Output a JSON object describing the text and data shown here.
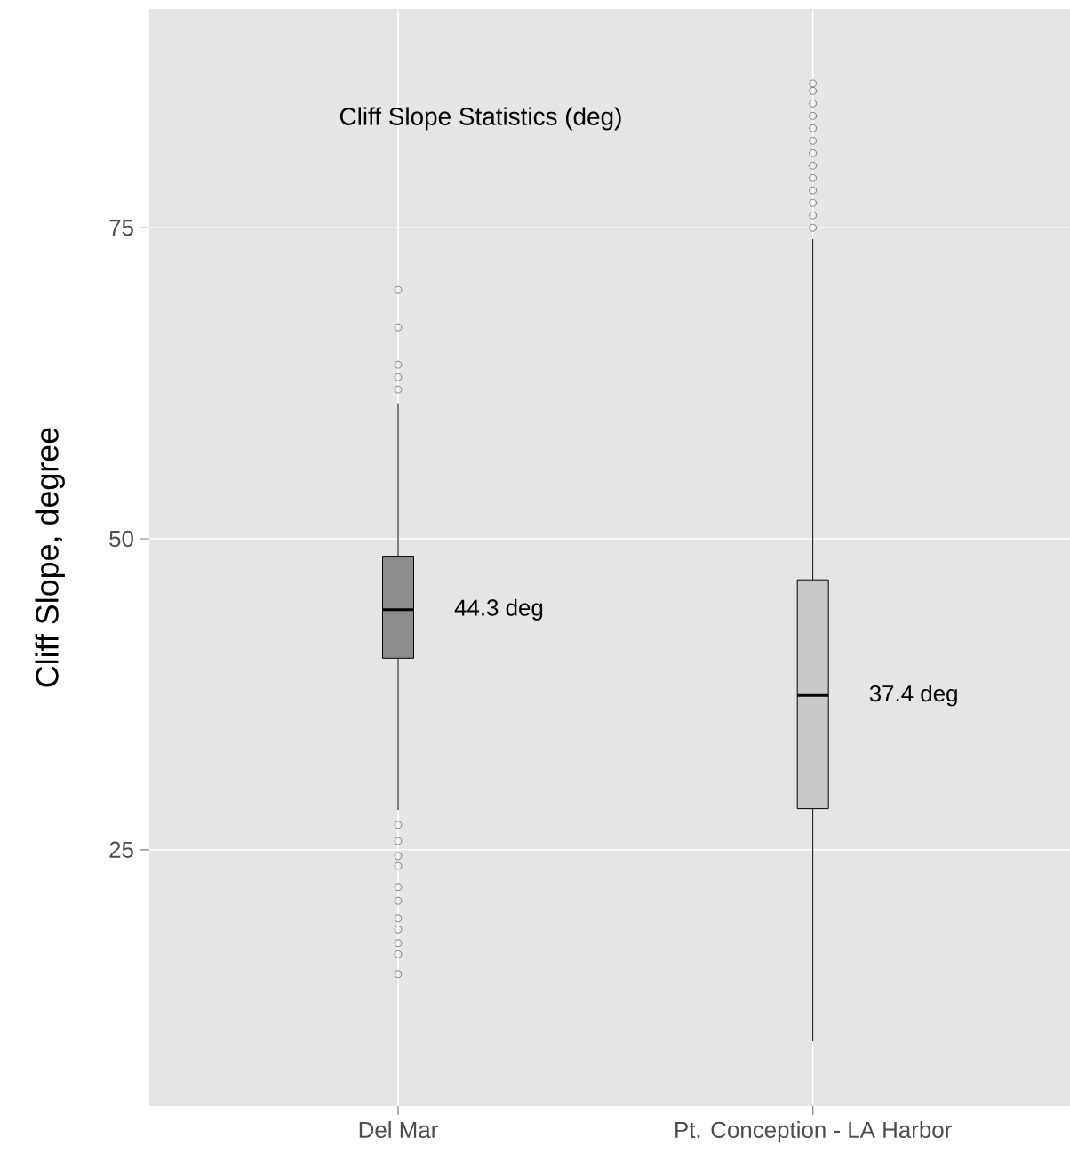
{
  "chart_data": {
    "type": "box",
    "title": "Cliff Slope Statistics (deg)",
    "ylabel": "Cliff Slope, degree",
    "categories": [
      "Del Mar",
      "Pt. Conception - LA Harbor"
    ],
    "colors": [
      "#8c8c8c",
      "#c8c8c8"
    ],
    "boxes": [
      {
        "low": 28.2,
        "q1": 40.4,
        "median": 44.3,
        "q3": 48.6,
        "high": 60.9,
        "outliers": [
          70,
          67,
          64,
          63,
          62,
          27,
          25.7,
          24.5,
          23.7,
          22,
          20.9,
          19.5,
          18.6,
          17.5,
          16.6,
          15
        ]
      },
      {
        "low": 9.6,
        "q1": 28.3,
        "median": 37.4,
        "q3": 46.7,
        "high": 74.1,
        "outliers": [
          75,
          76,
          77,
          78,
          79,
          80,
          81,
          82,
          83,
          84,
          85,
          86,
          86.6
        ]
      }
    ],
    "annotations": [
      {
        "text": "44.3 deg",
        "x": "Del Mar",
        "y": 44.3
      },
      {
        "text": "37.4 deg",
        "x": "Pt. Conception - LA Harbor",
        "y": 37.4
      }
    ],
    "ylim": [
      4.4,
      92.6
    ],
    "yticks": [
      25,
      50,
      75
    ],
    "grid": true,
    "marker": "circle"
  }
}
